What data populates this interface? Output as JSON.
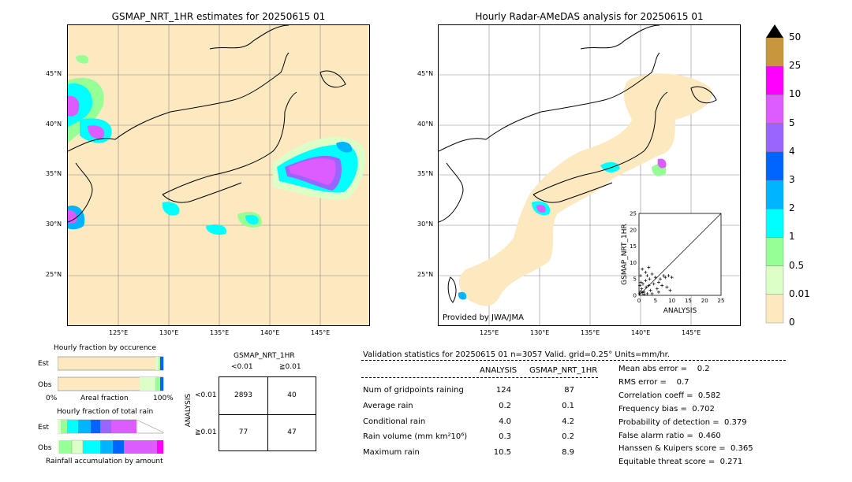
{
  "left_panel": {
    "title": "GSMAP_NRT_1HR estimates for 20250615 01",
    "lat_ticks": [
      "45°N",
      "40°N",
      "35°N",
      "30°N",
      "25°N"
    ],
    "lon_ticks": [
      "125°E",
      "130°E",
      "135°E",
      "140°E",
      "145°E"
    ]
  },
  "right_panel": {
    "title": "Hourly Radar-AMeDAS analysis for 20250615 01",
    "lat_ticks": [
      "45°N",
      "40°N",
      "35°N",
      "30°N",
      "25°N"
    ],
    "lon_ticks": [
      "125°E",
      "130°E",
      "135°E",
      "140°E",
      "145°E"
    ],
    "credit": "Provided by JWA/JMA"
  },
  "colorbar": {
    "labels": [
      "50",
      "25",
      "10",
      "5",
      "4",
      "3",
      "2",
      "1",
      "0.5",
      "0.01",
      "0"
    ],
    "colors": [
      "#c8963c",
      "#ff00ff",
      "#dc5cff",
      "#9a64ff",
      "#0064ff",
      "#00b4ff",
      "#00ffff",
      "#96ff96",
      "#dcffc8",
      "#fde9c0"
    ]
  },
  "chart_data": [
    {
      "type": "scatter",
      "title": "",
      "xlabel": "ANALYSIS",
      "ylabel": "GSMAP_NRT_1HR",
      "xlim": [
        0,
        25
      ],
      "ylim": [
        0,
        25
      ],
      "xticks": [
        "0",
        "5",
        "10",
        "15",
        "20",
        "25"
      ],
      "yticks": [
        "0",
        "5",
        "10",
        "15",
        "20",
        "25"
      ],
      "points": [
        [
          0.2,
          0.5
        ],
        [
          0.5,
          1.2
        ],
        [
          0.8,
          2.0
        ],
        [
          1.0,
          0.8
        ],
        [
          1.2,
          3.5
        ],
        [
          1.5,
          1.0
        ],
        [
          2.0,
          4.5
        ],
        [
          2.2,
          2.5
        ],
        [
          2.5,
          6.0
        ],
        [
          3.0,
          3.0
        ],
        [
          3.2,
          5.0
        ],
        [
          3.5,
          1.5
        ],
        [
          4.0,
          6.5
        ],
        [
          4.5,
          3.5
        ],
        [
          5.0,
          5.5
        ],
        [
          5.5,
          2.0
        ],
        [
          6.0,
          4.0
        ],
        [
          6.5,
          5.0
        ],
        [
          7.0,
          3.0
        ],
        [
          7.5,
          6.0
        ],
        [
          8.0,
          5.5
        ],
        [
          8.5,
          2.5
        ],
        [
          9.0,
          6.0
        ],
        [
          10.0,
          5.5
        ],
        [
          1.0,
          8.0
        ],
        [
          2.0,
          7.0
        ],
        [
          0.5,
          6.0
        ],
        [
          3.0,
          8.5
        ],
        [
          1.5,
          0.3
        ],
        [
          2.5,
          0.5
        ],
        [
          4.0,
          0.5
        ],
        [
          6.0,
          1.0
        ],
        [
          0.3,
          3.0
        ],
        [
          0.6,
          4.0
        ],
        [
          9.5,
          1.5
        ]
      ]
    },
    {
      "type": "bar",
      "title": "Hourly fraction by occurence",
      "categories": [
        "Est",
        "Obs"
      ],
      "xticks": [
        "0%",
        "100%"
      ],
      "xlabel": "Areal fraction"
    },
    {
      "type": "bar",
      "title": "Hourly fraction of total rain",
      "categories": [
        "Est",
        "Obs"
      ],
      "xlabel": "Rainfall accumulation by amount"
    }
  ],
  "contingency": {
    "title": "GSMAP_NRT_1HR",
    "col_labels": [
      "<0.01",
      "≧0.01"
    ],
    "row_labels": [
      "<0.01",
      "≧0.01"
    ],
    "side_label": "ANALYSIS",
    "cells": [
      "2893",
      "40",
      "77",
      "47"
    ]
  },
  "validation": {
    "header": "Validation statistics for 20250615 01  n=3057 Valid. grid=0.25° Units=mm/hr.",
    "col_analysis": "ANALYSIS",
    "col_gsmap": "GSMAP_NRT_1HR",
    "rows": [
      {
        "label": "Num of gridpoints raining",
        "a": "124",
        "g": "87"
      },
      {
        "label": "Average rain",
        "a": "0.2",
        "g": "0.1"
      },
      {
        "label": "Conditional rain",
        "a": "4.0",
        "g": "4.2"
      },
      {
        "label": "Rain volume (mm km²10⁶)",
        "a": "0.3",
        "g": "0.2"
      },
      {
        "label": "Maximum rain",
        "a": "10.5",
        "g": "8.9"
      }
    ],
    "scores": [
      "Mean abs error =    0.2",
      "RMS error =    0.7",
      "Correlation coeff =  0.582",
      "Frequency bias =  0.702",
      "Probability of detection =  0.379",
      "False alarm ratio =  0.460",
      "Hanssen & Kuipers score =  0.365",
      "Equitable threat score =  0.271"
    ]
  }
}
